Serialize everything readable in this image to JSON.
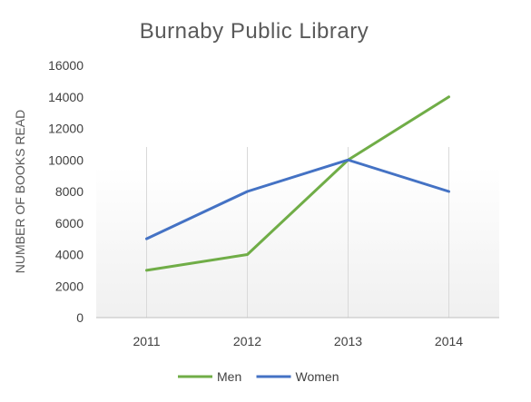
{
  "chart_data": {
    "type": "line",
    "title": "Burnaby Public Library",
    "xlabel": "",
    "ylabel": "NUMBER OF BOOKS READ",
    "categories": [
      "2011",
      "2012",
      "2013",
      "2014"
    ],
    "ylim": [
      0,
      16000
    ],
    "yticks": [
      0,
      2000,
      4000,
      6000,
      8000,
      10000,
      12000,
      14000,
      16000
    ],
    "grid": "vertical",
    "legend_position": "bottom",
    "series": [
      {
        "name": "Men",
        "values": [
          3000,
          4000,
          10000,
          14000
        ],
        "color": "#70AD47"
      },
      {
        "name": "Women",
        "values": [
          5000,
          8000,
          10000,
          8000
        ],
        "color": "#4472C4"
      }
    ]
  }
}
